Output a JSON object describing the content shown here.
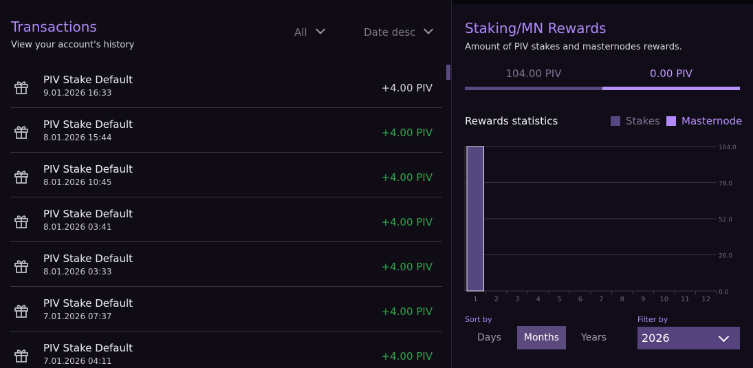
{
  "transactions": {
    "title": "Transactions",
    "subtitle": "View your account's history",
    "filter_type": "All",
    "sort_order": "Date desc",
    "items": [
      {
        "name": "PIV Stake Default",
        "date": "9.01.2026 16:33",
        "amount": "+4.00 PIV",
        "icon": "gift-icon"
      },
      {
        "name": "PIV Stake Default",
        "date": "8.01.2026 15:44",
        "amount": "+4.00 PIV",
        "icon": "gift-icon"
      },
      {
        "name": "PIV Stake Default",
        "date": "8.01.2026 10:45",
        "amount": "+4.00 PIV",
        "icon": "gift-icon"
      },
      {
        "name": "PIV Stake Default",
        "date": "8.01.2026 03:41",
        "amount": "+4.00 PIV",
        "icon": "gift-icon"
      },
      {
        "name": "PIV Stake Default",
        "date": "8.01.2026 03:33",
        "amount": "+4.00 PIV",
        "icon": "gift-icon"
      },
      {
        "name": "PIV Stake Default",
        "date": "7.01.2026 07:37",
        "amount": "+4.00 PIV",
        "icon": "gift-icon"
      },
      {
        "name": "PIV Stake Default",
        "date": "7.01.2026 04:11",
        "amount": "+4.00 PIV",
        "icon": "gift-icon"
      }
    ]
  },
  "rewards": {
    "title": "Staking/MN Rewards",
    "subtitle": "Amount of PIV stakes and masternodes rewards.",
    "stakes_amount": "104.00 PIV",
    "masternode_amount": "0.00 PIV",
    "stats_title": "Rewards statistics",
    "legend_stakes": "Stakes",
    "legend_masternode": "Masternode",
    "sort_label": "Sort by",
    "sort_options": [
      "Days",
      "Months",
      "Years"
    ],
    "sort_selected": "Months",
    "filter_label": "Filter by",
    "filter_value": "2026"
  },
  "colors": {
    "accent": "#b189f8",
    "stakes": "#554780",
    "masternode": "#b189f8",
    "positive": "#2fa84a"
  },
  "chart_data": {
    "type": "bar",
    "categories": [
      "1",
      "2",
      "3",
      "4",
      "5",
      "6",
      "7",
      "8",
      "9",
      "10",
      "11",
      "12"
    ],
    "series": [
      {
        "name": "Stakes",
        "values": [
          104,
          0,
          0,
          0,
          0,
          0,
          0,
          0,
          0,
          0,
          0,
          0
        ]
      },
      {
        "name": "Masternode",
        "values": [
          0,
          0,
          0,
          0,
          0,
          0,
          0,
          0,
          0,
          0,
          0,
          0
        ]
      }
    ],
    "ylim": [
      0,
      104
    ],
    "yticks": [
      "104.0",
      "78.0",
      "52.0",
      "26.0",
      "0.0"
    ],
    "grid": true,
    "legend": "top-right"
  }
}
